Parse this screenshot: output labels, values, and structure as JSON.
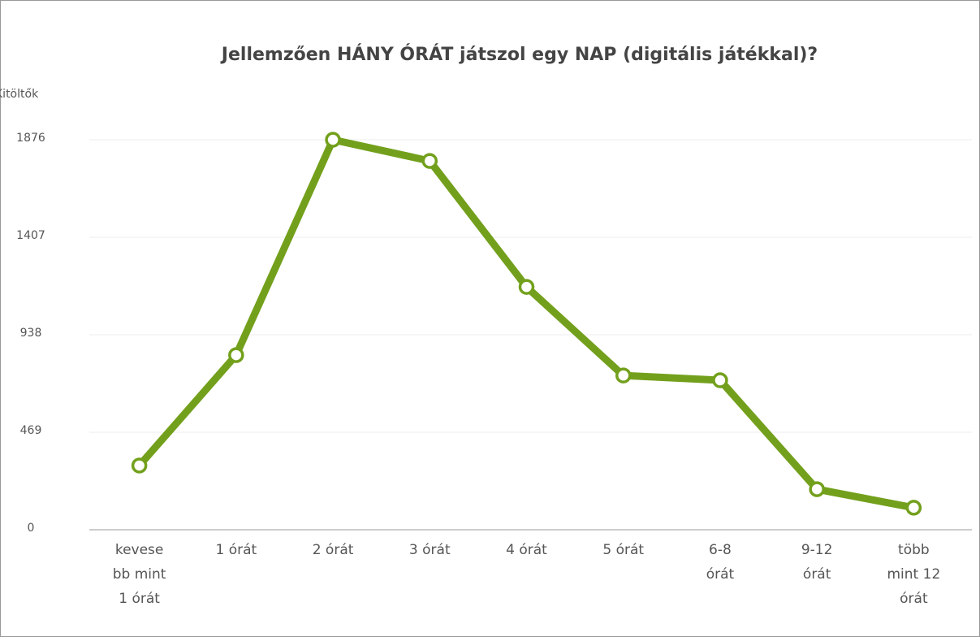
{
  "chart_data": {
    "type": "line",
    "title": "Jellemzően HÁNY ÓRÁT játszol egy NAP (digitális játékkal)?",
    "y_label": "Kitöltők",
    "categories": [
      "kevesebb mint 1 órát",
      "1 órát",
      "2 órát",
      "3 órát",
      "4 órát",
      "5 órát",
      "6-8 órát",
      "9-12 órát",
      "több mint 12 órát"
    ],
    "series": [
      {
        "name": "Kitöltők",
        "color": "#73a01c",
        "values": [
          309,
          840,
          1876,
          1774,
          1168,
          742,
          719,
          195,
          106
        ]
      }
    ],
    "ylim": [
      0,
      1876
    ],
    "yticks": [
      0,
      469,
      938,
      1407,
      1876
    ],
    "grid": true
  }
}
